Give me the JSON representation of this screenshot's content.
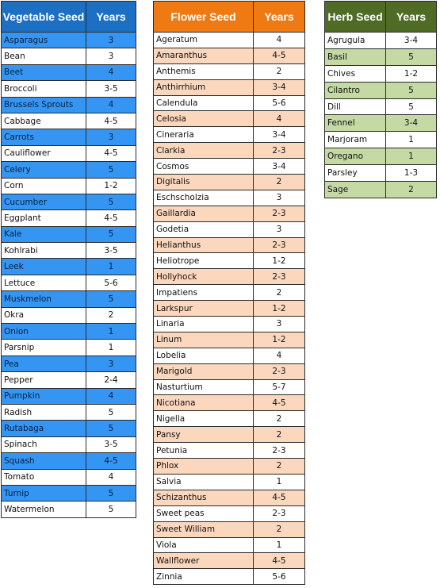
{
  "vegetable": {
    "header_name": "Vegetable Seed",
    "header_years": "Years",
    "rows": [
      {
        "name": "Asparagus",
        "years": "3"
      },
      {
        "name": "Bean",
        "years": "3"
      },
      {
        "name": "Beet",
        "years": "4"
      },
      {
        "name": "Broccoli",
        "years": "3-5"
      },
      {
        "name": "Brussels Sprouts",
        "years": "4"
      },
      {
        "name": "Cabbage",
        "years": "4-5"
      },
      {
        "name": "Carrots",
        "years": "3"
      },
      {
        "name": "Cauliflower",
        "years": "4-5"
      },
      {
        "name": "Celery",
        "years": "5"
      },
      {
        "name": "Corn",
        "years": "1-2"
      },
      {
        "name": "Cucumber",
        "years": "5"
      },
      {
        "name": "Eggplant",
        "years": "4-5"
      },
      {
        "name": "Kale",
        "years": "5"
      },
      {
        "name": "Kohlrabi",
        "years": "3-5"
      },
      {
        "name": "Leek",
        "years": "1"
      },
      {
        "name": "Lettuce",
        "years": "5-6"
      },
      {
        "name": "Muskmelon",
        "years": "5"
      },
      {
        "name": "Okra",
        "years": "2"
      },
      {
        "name": "Onion",
        "years": "1"
      },
      {
        "name": "Parsnip",
        "years": "1"
      },
      {
        "name": "Pea",
        "years": "3"
      },
      {
        "name": "Pepper",
        "years": "2-4"
      },
      {
        "name": "Pumpkin",
        "years": "4"
      },
      {
        "name": "Radish",
        "years": "5"
      },
      {
        "name": "Rutabaga",
        "years": "5"
      },
      {
        "name": "Spinach",
        "years": "3-5"
      },
      {
        "name": "Squash",
        "years": "4-5"
      },
      {
        "name": "Tomato",
        "years": "4"
      },
      {
        "name": "Turnip",
        "years": "5"
      },
      {
        "name": "Watermelon",
        "years": "5"
      }
    ]
  },
  "flower": {
    "header_name": "Flower Seed",
    "header_years": "Years",
    "rows": [
      {
        "name": "Ageratum",
        "years": "4"
      },
      {
        "name": "Amaranthus",
        "years": "4-5"
      },
      {
        "name": "Anthemis",
        "years": "2"
      },
      {
        "name": "Anthirrhium",
        "years": "3-4"
      },
      {
        "name": "Calendula",
        "years": "5-6"
      },
      {
        "name": "Celosia",
        "years": "4"
      },
      {
        "name": "Cineraria",
        "years": "3-4"
      },
      {
        "name": "Clarkia",
        "years": "2-3"
      },
      {
        "name": "Cosmos",
        "years": "3-4"
      },
      {
        "name": "Digitalis",
        "years": "2"
      },
      {
        "name": "Eschscholzia",
        "years": "3"
      },
      {
        "name": "Gaillardia",
        "years": "2-3"
      },
      {
        "name": "Godetia",
        "years": "3"
      },
      {
        "name": "Helianthus",
        "years": "2-3"
      },
      {
        "name": "Heliotrope",
        "years": "1-2"
      },
      {
        "name": "Hollyhock",
        "years": "2-3"
      },
      {
        "name": "Impatiens",
        "years": "2"
      },
      {
        "name": "Larkspur",
        "years": "1-2"
      },
      {
        "name": "Linaria",
        "years": "3"
      },
      {
        "name": "Linum",
        "years": "1-2"
      },
      {
        "name": "Lobelia",
        "years": "4"
      },
      {
        "name": "Marigold",
        "years": "2-3"
      },
      {
        "name": "Nasturtium",
        "years": "5-7"
      },
      {
        "name": "Nicotiana",
        "years": "4-5"
      },
      {
        "name": "Nigella",
        "years": "2"
      },
      {
        "name": "Pansy",
        "years": "2"
      },
      {
        "name": "Petunia",
        "years": "2-3"
      },
      {
        "name": "Phlox",
        "years": "2"
      },
      {
        "name": "Salvia",
        "years": "1"
      },
      {
        "name": "Schizanthus",
        "years": "4-5"
      },
      {
        "name": "Sweet peas",
        "years": "2-3"
      },
      {
        "name": "Sweet William",
        "years": "2"
      },
      {
        "name": "Viola",
        "years": "1"
      },
      {
        "name": "Wallflower",
        "years": "4-5"
      },
      {
        "name": "Zinnia",
        "years": "5-6"
      }
    ]
  },
  "herb": {
    "header_name": "Herb Seed",
    "header_years": "Years",
    "rows": [
      {
        "name": "Agrugula",
        "years": "3-4"
      },
      {
        "name": "Basil",
        "years": "5"
      },
      {
        "name": "Chives",
        "years": "1-2"
      },
      {
        "name": "Cilantro",
        "years": "5"
      },
      {
        "name": "Dill",
        "years": "5"
      },
      {
        "name": "Fennel",
        "years": "3-4"
      },
      {
        "name": "Marjoram",
        "years": "1"
      },
      {
        "name": "Oregano",
        "years": "1"
      },
      {
        "name": "Parsley",
        "years": "1-3"
      },
      {
        "name": "Sage",
        "years": "2"
      }
    ]
  }
}
